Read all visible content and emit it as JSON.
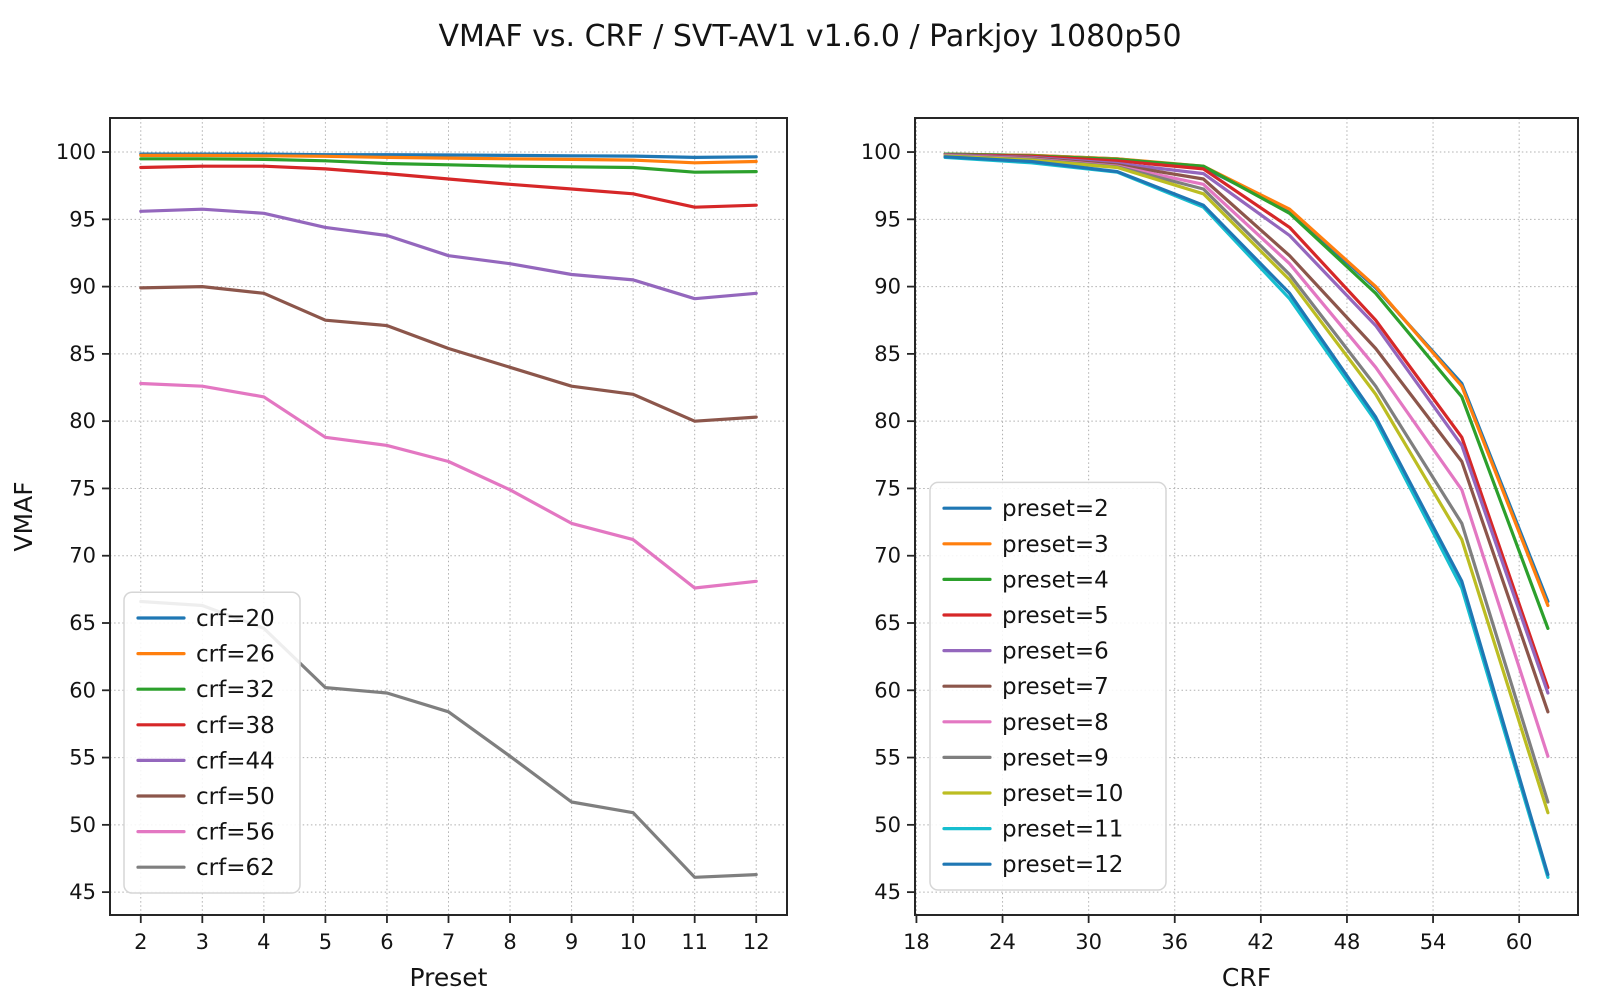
{
  "figure": {
    "title": "VMAF vs. CRF / SVT-AV1 v1.6.0 / Parkjoy 1080p50"
  },
  "chart_data": [
    {
      "type": "line",
      "xlabel": "Preset",
      "ylabel": "VMAF",
      "grid": true,
      "legend_position": "lower left",
      "x": [
        2,
        3,
        4,
        5,
        6,
        7,
        8,
        9,
        10,
        11,
        12
      ],
      "xticks": [
        2,
        3,
        4,
        5,
        6,
        7,
        8,
        9,
        10,
        11,
        12
      ],
      "yticks": [
        45,
        50,
        55,
        60,
        65,
        70,
        75,
        80,
        85,
        90,
        95,
        100
      ],
      "xlim": [
        1.5,
        12.5
      ],
      "ylim": [
        43.3,
        102.53
      ],
      "series": [
        {
          "name": "crf=20",
          "color": "#1f77b4",
          "values": [
            99.85,
            99.85,
            99.85,
            99.8,
            99.8,
            99.78,
            99.75,
            99.72,
            99.7,
            99.6,
            99.65
          ]
        },
        {
          "name": "crf=26",
          "color": "#ff7f0e",
          "values": [
            99.75,
            99.75,
            99.72,
            99.68,
            99.6,
            99.55,
            99.5,
            99.45,
            99.4,
            99.2,
            99.3
          ]
        },
        {
          "name": "crf=32",
          "color": "#2ca02c",
          "values": [
            99.5,
            99.5,
            99.45,
            99.35,
            99.15,
            99.05,
            98.95,
            98.9,
            98.85,
            98.5,
            98.55
          ]
        },
        {
          "name": "crf=38",
          "color": "#d62728",
          "values": [
            98.85,
            98.95,
            98.95,
            98.75,
            98.4,
            98.0,
            97.6,
            97.25,
            96.9,
            95.9,
            96.05
          ]
        },
        {
          "name": "crf=44",
          "color": "#9467bd",
          "values": [
            95.6,
            95.75,
            95.45,
            94.4,
            93.8,
            92.3,
            91.7,
            90.9,
            90.5,
            89.1,
            89.5
          ]
        },
        {
          "name": "crf=50",
          "color": "#8c564b",
          "values": [
            89.9,
            90.0,
            89.5,
            87.5,
            87.1,
            85.4,
            84.0,
            82.6,
            82.0,
            80.0,
            80.3
          ]
        },
        {
          "name": "crf=56",
          "color": "#e377c2",
          "values": [
            82.8,
            82.6,
            81.8,
            78.8,
            78.2,
            77.0,
            74.9,
            72.4,
            71.2,
            67.6,
            68.1
          ]
        },
        {
          "name": "crf=62",
          "color": "#7f7f7f",
          "values": [
            66.6,
            66.3,
            64.6,
            60.2,
            59.8,
            58.4,
            55.1,
            51.7,
            50.9,
            46.1,
            46.3
          ]
        }
      ]
    },
    {
      "type": "line",
      "xlabel": "CRF",
      "ylabel": "",
      "grid": true,
      "legend_position": "lower left",
      "x": [
        20,
        26,
        32,
        38,
        44,
        50,
        56,
        62
      ],
      "xticks": [
        18,
        24,
        30,
        36,
        42,
        48,
        54,
        60
      ],
      "yticks": [
        45,
        50,
        55,
        60,
        65,
        70,
        75,
        80,
        85,
        90,
        95,
        100
      ],
      "xlim": [
        17.9,
        64.1
      ],
      "ylim": [
        43.3,
        102.53
      ],
      "series": [
        {
          "name": "preset=2",
          "color": "#1f77b4",
          "values": [
            99.85,
            99.75,
            99.5,
            98.85,
            95.6,
            89.9,
            82.8,
            66.6
          ]
        },
        {
          "name": "preset=3",
          "color": "#ff7f0e",
          "values": [
            99.85,
            99.75,
            99.5,
            98.95,
            95.75,
            90.0,
            82.6,
            66.3
          ]
        },
        {
          "name": "preset=4",
          "color": "#2ca02c",
          "values": [
            99.85,
            99.72,
            99.45,
            98.95,
            95.45,
            89.5,
            81.8,
            64.6
          ]
        },
        {
          "name": "preset=5",
          "color": "#d62728",
          "values": [
            99.8,
            99.68,
            99.35,
            98.75,
            94.4,
            87.5,
            78.8,
            60.2
          ]
        },
        {
          "name": "preset=6",
          "color": "#9467bd",
          "values": [
            99.8,
            99.6,
            99.15,
            98.4,
            93.8,
            87.1,
            78.2,
            59.8
          ]
        },
        {
          "name": "preset=7",
          "color": "#8c564b",
          "values": [
            99.78,
            99.55,
            99.05,
            98.0,
            92.3,
            85.4,
            77.0,
            58.4
          ]
        },
        {
          "name": "preset=8",
          "color": "#e377c2",
          "values": [
            99.75,
            99.5,
            98.95,
            97.6,
            91.7,
            84.0,
            74.9,
            55.1
          ]
        },
        {
          "name": "preset=9",
          "color": "#7f7f7f",
          "values": [
            99.72,
            99.45,
            98.9,
            97.25,
            90.9,
            82.6,
            72.4,
            51.7
          ]
        },
        {
          "name": "preset=10",
          "color": "#bcbd22",
          "values": [
            99.7,
            99.4,
            98.85,
            96.9,
            90.5,
            82.0,
            71.2,
            50.9
          ]
        },
        {
          "name": "preset=11",
          "color": "#17becf",
          "values": [
            99.6,
            99.2,
            98.5,
            95.9,
            89.1,
            80.0,
            67.6,
            46.1
          ]
        },
        {
          "name": "preset=12",
          "color": "#1f77b4",
          "values": [
            99.65,
            99.3,
            98.55,
            96.05,
            89.5,
            80.3,
            68.1,
            46.3
          ]
        }
      ]
    }
  ]
}
